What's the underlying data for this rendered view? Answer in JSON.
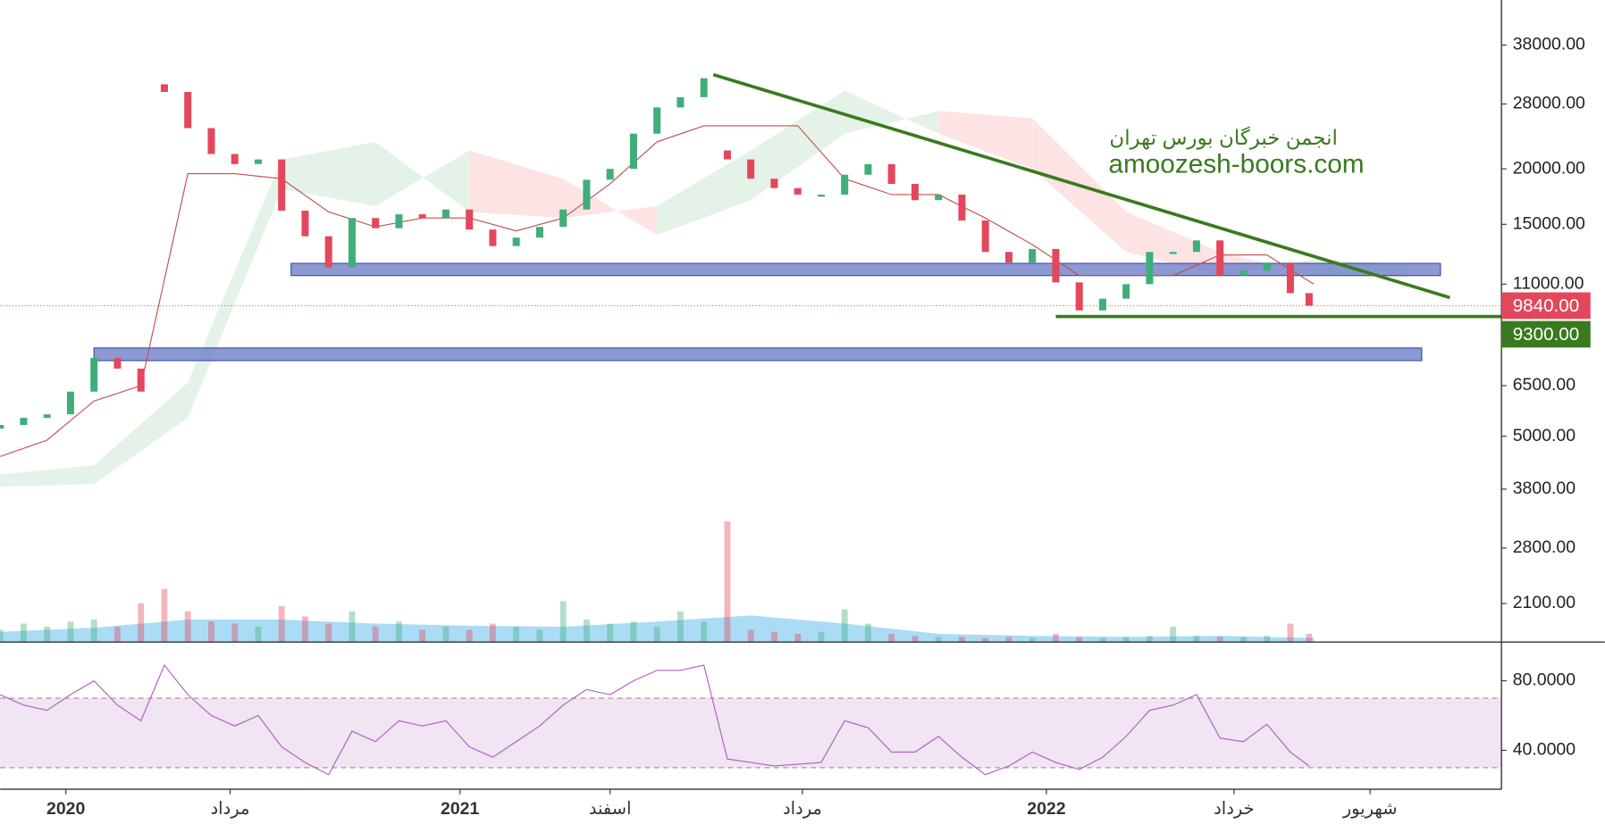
{
  "chart_data": {
    "type": "candlestick",
    "log_y": true,
    "up_color": "#3fae78",
    "down_color": "#e4475c",
    "xlim": [
      0,
      320
    ],
    "ylim": [
      1720,
      48000
    ],
    "xticks": [
      {
        "value": 14,
        "label": "2020"
      },
      {
        "value": 49,
        "label": "مرداد"
      },
      {
        "value": 98,
        "label": "2021"
      },
      {
        "value": 130,
        "label": "اسفند"
      },
      {
        "value": 171,
        "label": "مرداد"
      },
      {
        "value": 223,
        "label": "2022"
      },
      {
        "value": 263,
        "label": "خرداد"
      },
      {
        "value": 292,
        "label": "شهریور"
      }
    ],
    "yticks": [
      {
        "value": 38000,
        "label": "38000.00"
      },
      {
        "value": 28000,
        "label": "28000.00"
      },
      {
        "value": 20000,
        "label": "20000.00"
      },
      {
        "value": 15000,
        "label": "15000.00"
      },
      {
        "value": 11000,
        "label": "11000.00"
      },
      {
        "value": 6500,
        "label": "6500.00"
      },
      {
        "value": 5000,
        "label": "5000.00"
      },
      {
        "value": 3800,
        "label": "3800.00"
      },
      {
        "value": 2800,
        "label": "2800.00"
      },
      {
        "value": 2100,
        "label": "2100.00"
      }
    ],
    "x": [
      0,
      5,
      10,
      15,
      20,
      25,
      30,
      35,
      40,
      45,
      50,
      55,
      60,
      65,
      70,
      75,
      80,
      85,
      90,
      95,
      100,
      105,
      110,
      115,
      120,
      125,
      130,
      135,
      140,
      145,
      150,
      155,
      160,
      165,
      170,
      175,
      180,
      185,
      190,
      195,
      200,
      205,
      210,
      215,
      220,
      225,
      230,
      235,
      240,
      245,
      250,
      255,
      260,
      265,
      270,
      275,
      279
    ],
    "open": [
      5200,
      5300,
      5500,
      5600,
      6300,
      7500,
      7100,
      31000,
      29800,
      24700,
      21600,
      20500,
      21000,
      16100,
      14100,
      12000,
      15500,
      14700,
      15800,
      15500,
      16200,
      14600,
      13400,
      14000,
      14800,
      16200,
      18900,
      20000,
      24000,
      27500,
      29000,
      22000,
      21000,
      19000,
      18100,
      17500,
      17500,
      19400,
      20500,
      18500,
      17000,
      17500,
      15300,
      13000,
      12300,
      13200,
      11100,
      9600,
      10200,
      11000,
      13000,
      13000,
      13800,
      11500,
      11800,
      12300,
      10500
    ],
    "close": [
      5300,
      5500,
      5600,
      6300,
      7500,
      7100,
      6300,
      29800,
      24700,
      21600,
      20500,
      21000,
      16100,
      14100,
      12000,
      15500,
      14700,
      15800,
      15500,
      16200,
      14600,
      13400,
      14000,
      14800,
      16200,
      18900,
      20000,
      24000,
      27500,
      29000,
      32000,
      21000,
      19000,
      18100,
      17500,
      17500,
      19400,
      20500,
      18500,
      17000,
      17500,
      15300,
      13000,
      12300,
      13200,
      11100,
      9600,
      10200,
      11000,
      13000,
      13000,
      13800,
      11500,
      11800,
      12300,
      10500,
      9840
    ],
    "kijun": {
      "color": "#c0504d",
      "x": [
        0,
        10,
        20,
        30,
        40,
        50,
        60,
        70,
        80,
        90,
        100,
        110,
        120,
        130,
        140,
        150,
        160,
        170,
        180,
        190,
        200,
        210,
        220,
        230,
        240,
        250,
        260,
        270,
        280
      ],
      "values": [
        4500,
        4900,
        6000,
        6500,
        19500,
        19500,
        19000,
        16000,
        14800,
        15500,
        15500,
        14500,
        15500,
        18500,
        23000,
        25000,
        25000,
        25000,
        19000,
        17500,
        17500,
        15500,
        13500,
        11500,
        11500,
        11500,
        12800,
        12800,
        11000
      ]
    },
    "cloud": {
      "up_color": "#e2f1e4",
      "down_color": "#fde0e1",
      "x": [
        0,
        20,
        40,
        60,
        80,
        100,
        120,
        140,
        160,
        180,
        200,
        220,
        240,
        260,
        280,
        300
      ],
      "span_a": [
        4100,
        4300,
        6600,
        21000,
        23000,
        16000,
        15500,
        16500,
        22000,
        30000,
        24000,
        20000,
        13000,
        11500,
        12500,
        12200
      ],
      "span_b": [
        3850,
        3900,
        5500,
        18000,
        16500,
        22000,
        19000,
        14200,
        17000,
        24000,
        27000,
        26000,
        16000,
        13000,
        11500,
        11400
      ]
    },
    "zones": [
      {
        "from": 62,
        "to": 307,
        "low": 11500,
        "high": 12250,
        "color": "#6f80c8"
      },
      {
        "from": 20,
        "to": 303,
        "low": 7400,
        "high": 7900,
        "color": "#6f80c8"
      }
    ],
    "trendlines": [
      {
        "x": [
          152,
          309
        ],
        "values": [
          32600,
          10260
        ],
        "color": "#3a7a1f"
      },
      {
        "x": [
          225,
          320
        ],
        "values": [
          9300,
          9300
        ],
        "color": "#3a7a1f"
      }
    ],
    "price_labels": [
      {
        "value": 9840,
        "label": "9840.00",
        "color": "#e4475c",
        "dotted": true
      },
      {
        "value": 9300,
        "label": "9300.00",
        "color": "#3a7a1f",
        "dotted": false
      }
    ],
    "watermark": {
      "color": "#3a7a1f",
      "lines": [
        "انجمن خبرگان بورس تهران",
        "amoozesh-boors.com"
      ]
    },
    "volume": {
      "vlim": [
        0,
        120
      ],
      "ma_color": "#8fd0f2",
      "values": [
        12,
        18,
        15,
        20,
        22,
        15,
        38,
        52,
        30,
        20,
        18,
        15,
        35,
        25,
        18,
        30,
        15,
        20,
        12,
        15,
        12,
        18,
        15,
        12,
        40,
        22,
        18,
        20,
        15,
        30,
        20,
        118,
        12,
        10,
        8,
        10,
        32,
        18,
        8,
        6,
        5,
        5,
        4,
        5,
        4,
        8,
        5,
        4,
        5,
        6,
        15,
        6,
        5,
        5,
        6,
        18,
        8
      ],
      "ma_x": [
        0,
        20,
        40,
        60,
        80,
        100,
        120,
        140,
        160,
        180,
        200,
        220,
        240,
        260,
        280
      ],
      "ma_values": [
        10,
        14,
        22,
        22,
        18,
        16,
        15,
        20,
        26,
        18,
        8,
        6,
        5,
        6,
        4
      ]
    },
    "rsi": {
      "color": "#b05ec0",
      "band_color": "#f1e4f3",
      "ylim": [
        17.6,
        97.6
      ],
      "yticks": [
        {
          "value": 80,
          "label": "80.0000"
        },
        {
          "value": 40,
          "label": "40.0000"
        }
      ],
      "band": [
        30,
        70
      ],
      "values": [
        72,
        66,
        63,
        72,
        80,
        66,
        57,
        89,
        72,
        60,
        54,
        60,
        42,
        33,
        26,
        51,
        45,
        57,
        54,
        57,
        42,
        36,
        45,
        54,
        66,
        75,
        72,
        80,
        86,
        86,
        89,
        35,
        33,
        31,
        32,
        33,
        57,
        53,
        39,
        39,
        48,
        36,
        26,
        31,
        39,
        33,
        29,
        36,
        48,
        63,
        66,
        72,
        47,
        45,
        55,
        39,
        31
      ]
    }
  }
}
